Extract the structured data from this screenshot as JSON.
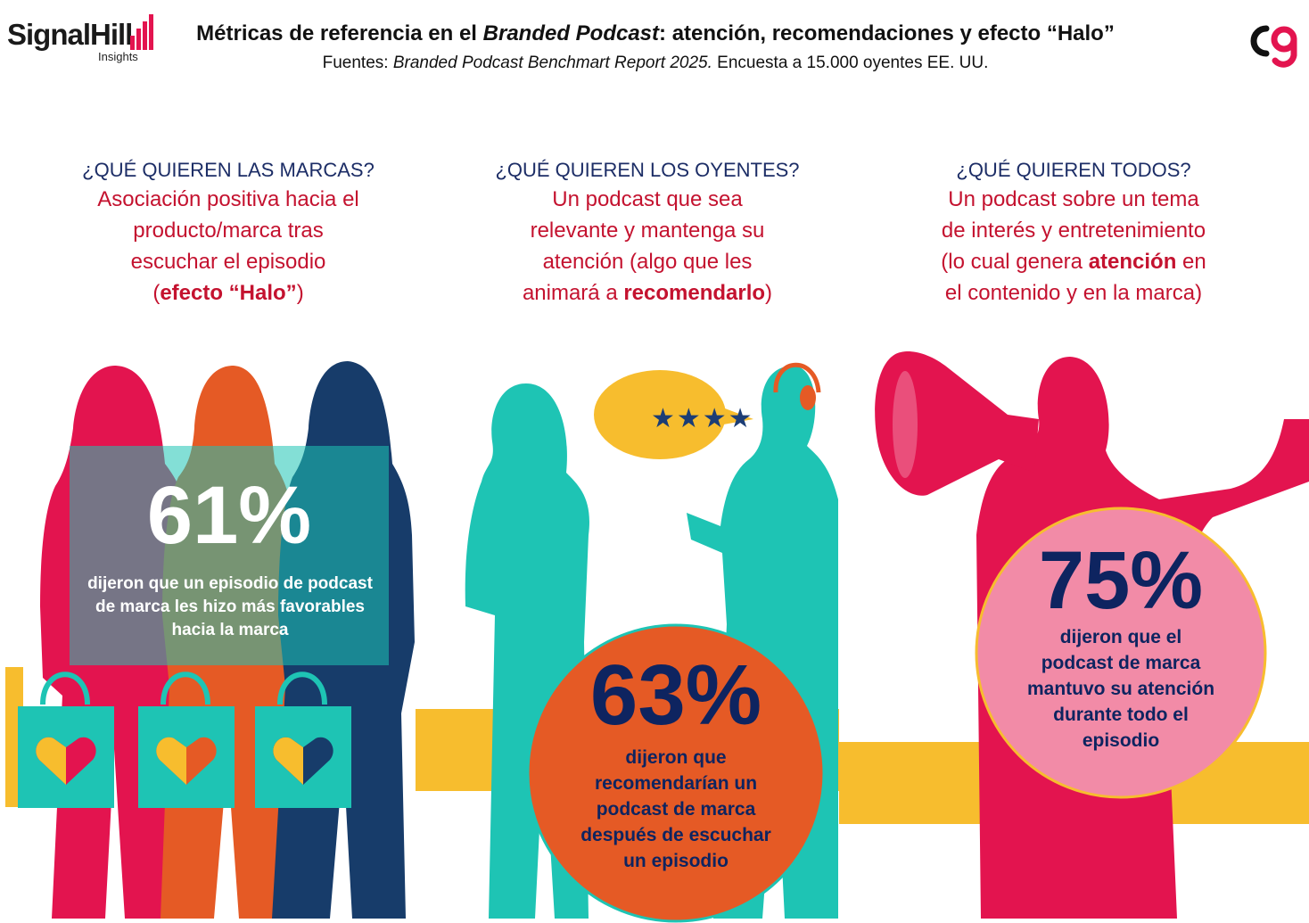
{
  "header": {
    "brand_name": "SignalHill",
    "brand_sub": "Insights",
    "title_pre": "Métricas de referencia en el ",
    "title_em": "Branded Podcast",
    "title_post": ": atención, recomendaciones y efecto “Halo”",
    "subtitle_pre": "Fuentes: ",
    "subtitle_em": "Branded Podcast Benchmart Report 2025.",
    "subtitle_post": " Encuesta a 15.000 oyentes EE. UU."
  },
  "columns": [
    {
      "question": "¿QUÉ QUIEREN LAS MARCAS?",
      "answer_lines": [
        "Asociación positiva hacia el",
        "producto/marca tras",
        "escuchar el episodio"
      ],
      "answer_last_pre": "(",
      "answer_last_bold": "efecto “Halo”",
      "answer_last_post": ")",
      "stat_value": "61%",
      "stat_desc": "dijeron que un episodio de podcast de marca les hizo más favorables hacia la marca"
    },
    {
      "question": "¿QUÉ QUIEREN LOS OYENTES?",
      "answer_lines": [
        "Un podcast que sea",
        "relevante y mantenga su",
        "atención (algo que les"
      ],
      "answer_last_pre": "animará a ",
      "answer_last_bold": "recomendarlo",
      "answer_last_post": ")",
      "stat_value": "63%",
      "stat_desc": "dijeron que recomendarían un podcast de marca después de escuchar un episodio",
      "bubble_stars": "★★★★"
    },
    {
      "question": "¿QUÉ QUIEREN TODOS?",
      "answer_lines": [
        "Un podcast sobre un tema",
        "de interés y entretenimiento"
      ],
      "answer_line3_pre": "(lo cual genera ",
      "answer_line3_bold": "atención",
      "answer_line3_post": " en",
      "answer_line4": "el contenido y en la marca)",
      "stat_value": "75%",
      "stat_desc": "dijeron que el podcast de marca mantuvo su atención durante todo el episodio"
    }
  ],
  "colors": {
    "pink": "#e3144f",
    "orange": "#e55a25",
    "navy": "#173c6a",
    "teal": "#1ec4b4",
    "yellow": "#f7bd2e",
    "light_pink": "#f28ba7",
    "dark_blue": "#0e2460",
    "red": "#c4122f"
  }
}
